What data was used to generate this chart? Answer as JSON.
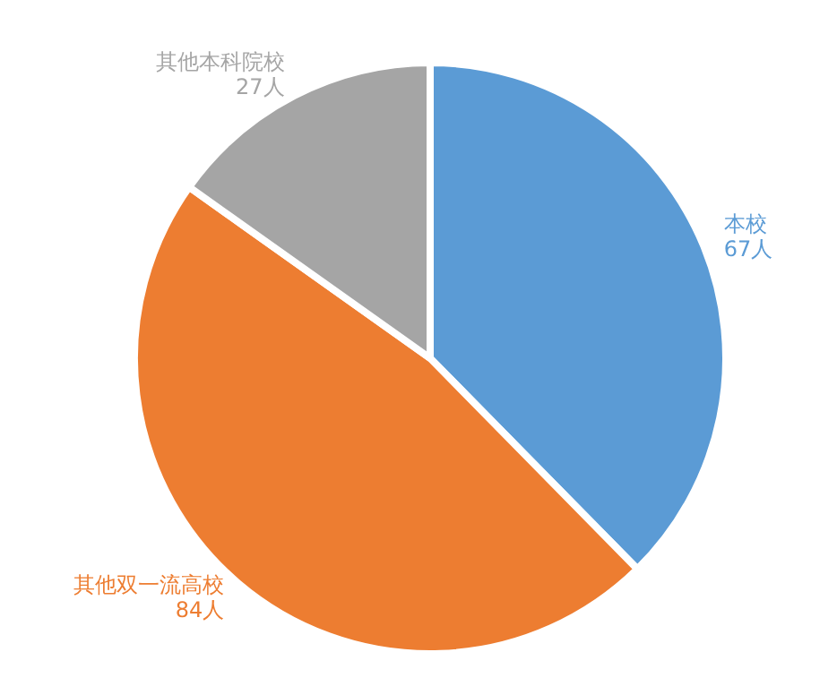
{
  "chart_data": {
    "type": "pie",
    "categories": [
      "本校",
      "其他双一流高校",
      "其他本科院校"
    ],
    "values": [
      67,
      84,
      27
    ],
    "colors": [
      "#5b9bd5",
      "#ed7d31",
      "#a5a5a5"
    ],
    "value_labels": [
      "67人",
      "84人",
      "27人"
    ]
  }
}
